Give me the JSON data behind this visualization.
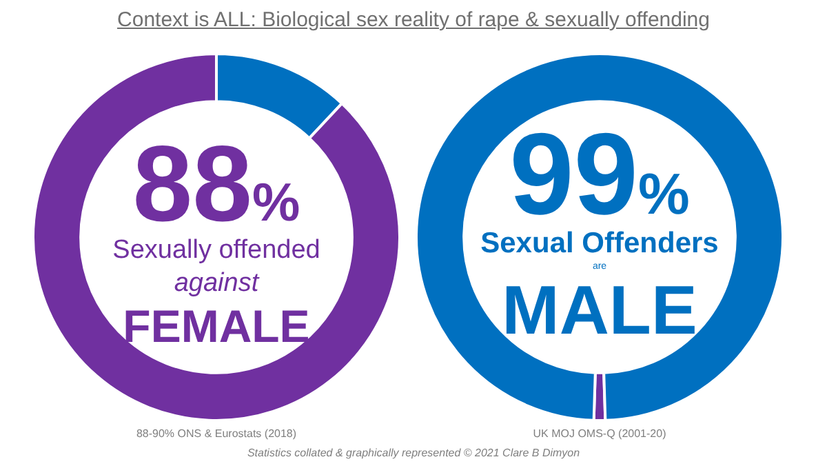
{
  "chart_data": [
    {
      "type": "donut",
      "title": "Context is ALL: Biological sex reality of rape & sexually offending",
      "categories": [
        null,
        null
      ],
      "values": [
        12,
        88
      ],
      "colors": [
        "#0070c0",
        "#7030a0"
      ],
      "value_labels": [
        null,
        "88%"
      ],
      "annotations": [
        "Sexually offended",
        "against",
        "FEMALE",
        "88-90% ONS & Eurostats (2018)",
        "Statistics collated & graphically represented © 2021 Clare B Dimyon"
      ]
    },
    {
      "type": "donut",
      "categories": [
        null,
        null
      ],
      "values": [
        1,
        99
      ],
      "colors": [
        "#7030a0",
        "#0070c0"
      ],
      "value_labels": [
        null,
        "99%"
      ],
      "annotations": [
        "Sexual Offenders",
        "are",
        "MALE",
        "UK MOJ OMS-Q (2001-20)"
      ]
    }
  ]
}
